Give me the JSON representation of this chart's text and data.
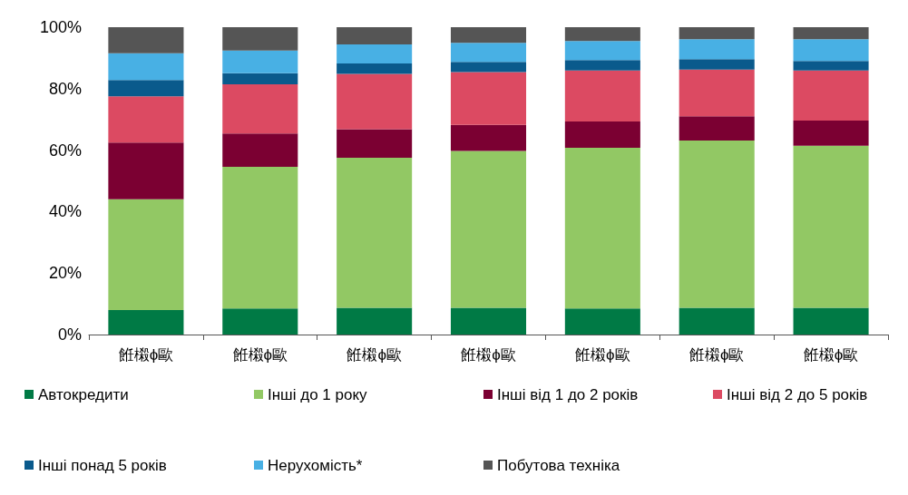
{
  "chart_data": {
    "type": "bar",
    "stacked": true,
    "categories": [
      "餁樧ϕ歐",
      "餁樧ϕ歐",
      "餁樧ϕ歐",
      "餁樧ϕ歐",
      "餁樧ϕ歐",
      "餁樧ϕ歐",
      "餁樧ϕ歐"
    ],
    "ylim": [
      0,
      100
    ],
    "yticks": [
      {
        "value": 0,
        "label": "0%"
      },
      {
        "value": 20,
        "label": "20%"
      },
      {
        "value": 40,
        "label": "40%"
      },
      {
        "value": 60,
        "label": "60%"
      },
      {
        "value": 80,
        "label": "80%"
      },
      {
        "value": 100,
        "label": "100%"
      }
    ],
    "grid": false,
    "legend": "bottom",
    "series": [
      {
        "name": "Автокредити",
        "color": "#007a45",
        "values": [
          8,
          8.5,
          8.7,
          8.7,
          8.5,
          8.7,
          8.7
        ]
      },
      {
        "name": "Інші до 1 року",
        "color": "#92c864",
        "values": [
          36,
          46.1,
          48.8,
          51,
          52.3,
          54.4,
          52.7
        ]
      },
      {
        "name": "Інші від 1 до 2 років",
        "color": "#7b0032",
        "values": [
          18.5,
          10.8,
          9.3,
          8.5,
          8.5,
          7.9,
          8.2
        ]
      },
      {
        "name": "Інші від 2 до 5 років",
        "color": "#dc4a62",
        "values": [
          15,
          16,
          18,
          17.2,
          16.6,
          15.2,
          16.3
        ]
      },
      {
        "name": "Інші понад 5 років",
        "color": "#0a5a8c",
        "values": [
          5.3,
          3.6,
          3.4,
          3.3,
          3.4,
          3.4,
          3.1
        ]
      },
      {
        "name": "Нерухомість*",
        "color": "#48b0e4",
        "values": [
          8.7,
          7.4,
          6.2,
          6.2,
          6.2,
          6.5,
          7.1
        ]
      },
      {
        "name": "Побутова техніка",
        "color": "#555555",
        "values": [
          8.5,
          7.6,
          5.6,
          5.1,
          4.5,
          3.9,
          3.9
        ]
      }
    ]
  }
}
